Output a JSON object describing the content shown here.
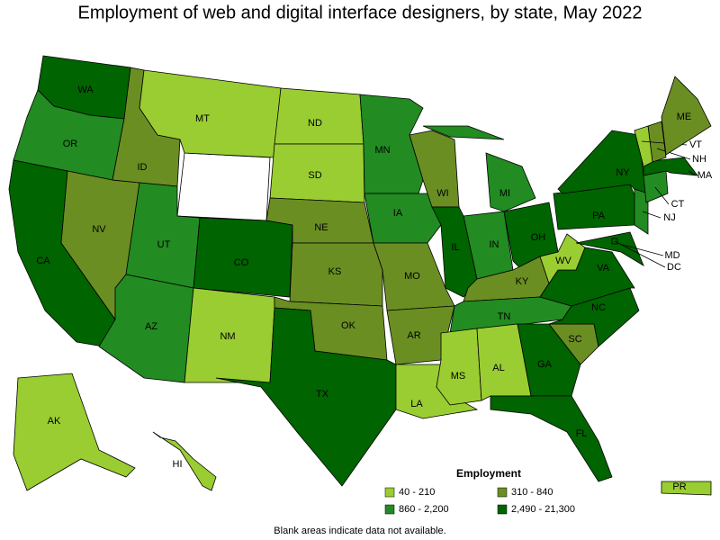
{
  "title": "Employment of web and digital interface designers, by state, May 2022",
  "states": [
    {
      "label": "WA",
      "color": "#006400"
    },
    {
      "label": "OR",
      "color": "#228b22"
    },
    {
      "label": "CA",
      "color": "#006400"
    },
    {
      "label": "NV",
      "color": "#6b8e23"
    },
    {
      "label": "ID",
      "color": "#6b8e23"
    },
    {
      "label": "MT",
      "color": "#9acd32"
    },
    {
      "label": "UT",
      "color": "#228b22"
    },
    {
      "label": "AZ",
      "color": "#228b22"
    },
    {
      "label": "CO",
      "color": "#006400"
    },
    {
      "label": "NM",
      "color": "#9acd32"
    },
    {
      "label": "ND",
      "color": "#9acd32"
    },
    {
      "label": "SD",
      "color": "#9acd32"
    },
    {
      "label": "NE",
      "color": "#6b8e23"
    },
    {
      "label": "KS",
      "color": "#6b8e23"
    },
    {
      "label": "OK",
      "color": "#6b8e23"
    },
    {
      "label": "TX",
      "color": "#006400"
    },
    {
      "label": "MN",
      "color": "#228b22"
    },
    {
      "label": "IA",
      "color": "#228b22"
    },
    {
      "label": "MO",
      "color": "#6b8e23"
    },
    {
      "label": "AR",
      "color": "#6b8e23"
    },
    {
      "label": "LA",
      "color": "#9acd32"
    },
    {
      "label": "WI",
      "color": "#6b8e23"
    },
    {
      "label": "IL",
      "color": "#006400"
    },
    {
      "label": "MI",
      "color": "#228b22"
    },
    {
      "label": "IN",
      "color": "#228b22"
    },
    {
      "label": "OH",
      "color": "#006400"
    },
    {
      "label": "KY",
      "color": "#6b8e23"
    },
    {
      "label": "TN",
      "color": "#228b22"
    },
    {
      "label": "MS",
      "color": "#9acd32"
    },
    {
      "label": "AL",
      "color": "#9acd32"
    },
    {
      "label": "GA",
      "color": "#006400"
    },
    {
      "label": "FL",
      "color": "#006400"
    },
    {
      "label": "SC",
      "color": "#6b8e23"
    },
    {
      "label": "NC",
      "color": "#006400"
    },
    {
      "label": "VA",
      "color": "#006400"
    },
    {
      "label": "WV",
      "color": "#9acd32"
    },
    {
      "label": "PA",
      "color": "#006400"
    },
    {
      "label": "NY",
      "color": "#006400"
    },
    {
      "label": "NJ",
      "color": "#228b22"
    },
    {
      "label": "MD",
      "color": "#006400"
    },
    {
      "label": "DC",
      "color": "#006400"
    },
    {
      "label": "CT",
      "color": "#228b22"
    },
    {
      "label": "MA",
      "color": "#006400"
    },
    {
      "label": "NH",
      "color": "#6b8e23"
    },
    {
      "label": "VT",
      "color": "#9acd32"
    },
    {
      "label": "ME",
      "color": "#6b8e23"
    },
    {
      "label": "AK",
      "color": "#9acd32"
    },
    {
      "label": "HI",
      "color": "#9acd32"
    },
    {
      "label": "PR",
      "color": "#9acd32"
    }
  ],
  "legend": {
    "title": "Employment",
    "items": [
      {
        "label": "40 - 210",
        "color": "#9acd32"
      },
      {
        "label": "310 - 840",
        "color": "#6b8e23"
      },
      {
        "label": "860 - 2,200",
        "color": "#228b22"
      },
      {
        "label": "2,490 - 21,300",
        "color": "#006400"
      }
    ]
  },
  "footnote": "Blank areas indicate data not available."
}
